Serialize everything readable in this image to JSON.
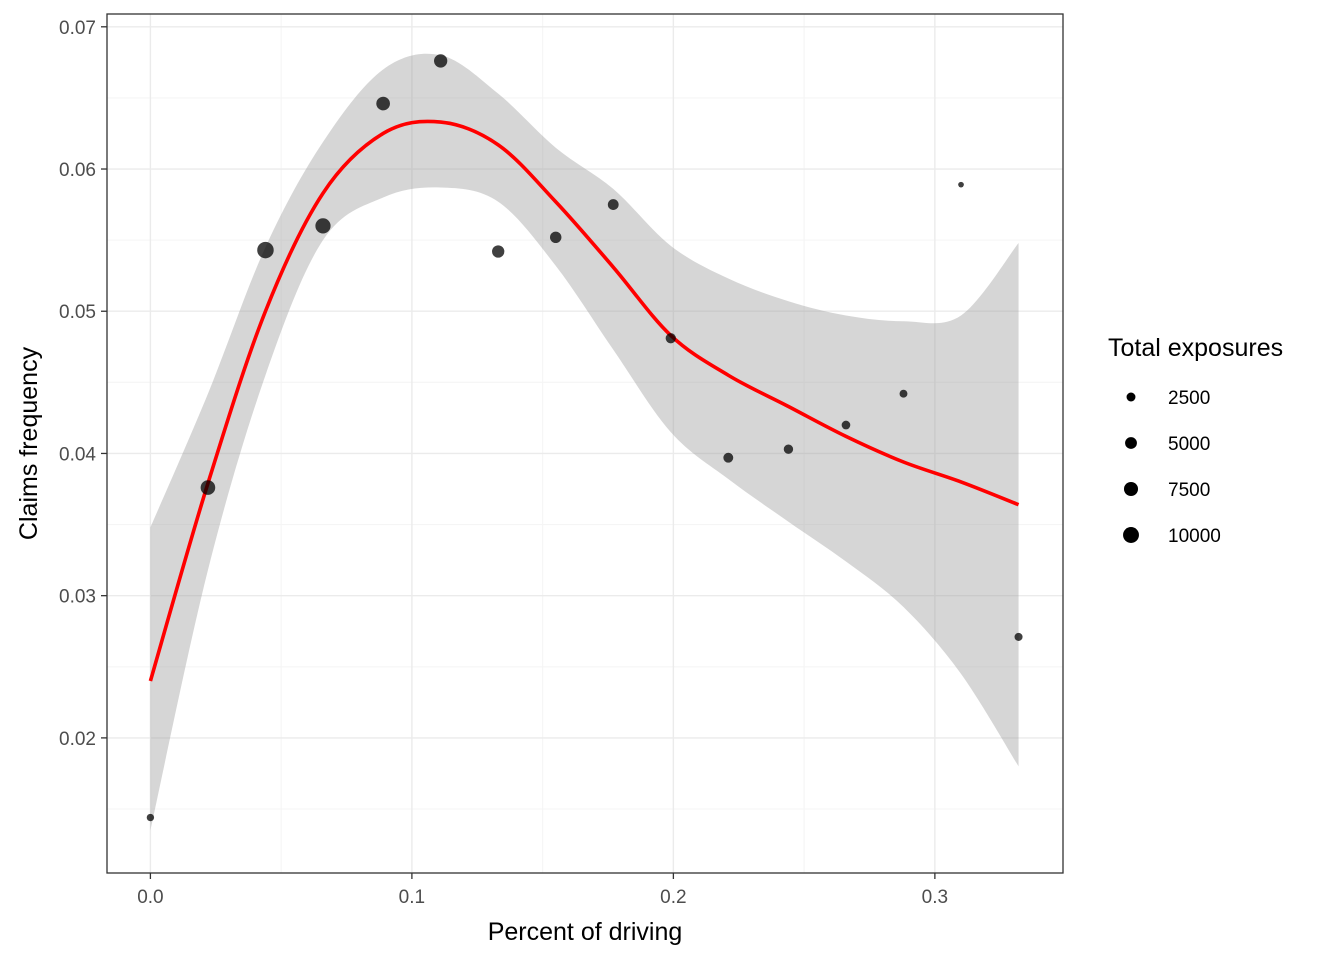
{
  "chart_data": {
    "type": "scatter",
    "xlabel": "Percent of driving",
    "ylabel": "Claims frequency",
    "xlim": [
      -0.0166,
      0.349
    ],
    "ylim": [
      0.0105,
      0.0709
    ],
    "x_ticks": [
      0.0,
      0.1,
      0.2,
      0.3
    ],
    "x_tick_labels": [
      "0.0",
      "0.1",
      "0.2",
      "0.3"
    ],
    "y_ticks": [
      0.02,
      0.03,
      0.04,
      0.05,
      0.06,
      0.07
    ],
    "y_tick_labels": [
      "0.02",
      "0.03",
      "0.04",
      "0.05",
      "0.06",
      "0.07"
    ],
    "grid": true,
    "points": [
      {
        "x": 0.0,
        "y": 0.0144,
        "exposure": 1500
      },
      {
        "x": 0.022,
        "y": 0.0376,
        "exposure": 8200
      },
      {
        "x": 0.044,
        "y": 0.0543,
        "exposure": 10800
      },
      {
        "x": 0.066,
        "y": 0.056,
        "exposure": 9000
      },
      {
        "x": 0.089,
        "y": 0.0646,
        "exposure": 7000
      },
      {
        "x": 0.111,
        "y": 0.0676,
        "exposure": 6600
      },
      {
        "x": 0.133,
        "y": 0.0542,
        "exposure": 5500
      },
      {
        "x": 0.155,
        "y": 0.0552,
        "exposure": 4600
      },
      {
        "x": 0.177,
        "y": 0.0575,
        "exposure": 4000
      },
      {
        "x": 0.199,
        "y": 0.0481,
        "exposure": 3500
      },
      {
        "x": 0.221,
        "y": 0.0397,
        "exposure": 3200
      },
      {
        "x": 0.244,
        "y": 0.0403,
        "exposure": 2800
      },
      {
        "x": 0.266,
        "y": 0.042,
        "exposure": 2300
      },
      {
        "x": 0.288,
        "y": 0.0442,
        "exposure": 1800
      },
      {
        "x": 0.31,
        "y": 0.0589,
        "exposure": 700
      },
      {
        "x": 0.332,
        "y": 0.0271,
        "exposure": 1900
      }
    ],
    "smooth": {
      "color": "#ff0000",
      "x": [
        0.0,
        0.022,
        0.044,
        0.066,
        0.089,
        0.111,
        0.133,
        0.155,
        0.177,
        0.199,
        0.221,
        0.244,
        0.266,
        0.288,
        0.31,
        0.332
      ],
      "y": [
        0.024,
        0.0379,
        0.05,
        0.0583,
        0.0625,
        0.0633,
        0.0617,
        0.0577,
        0.0531,
        0.0483,
        0.0455,
        0.0433,
        0.0412,
        0.0394,
        0.038,
        0.0364
      ],
      "lower": [
        0.0135,
        0.0318,
        0.0455,
        0.055,
        0.058,
        0.0587,
        0.0577,
        0.0532,
        0.0473,
        0.0415,
        0.0382,
        0.0352,
        0.0324,
        0.0292,
        0.0245,
        0.018
      ],
      "upper": [
        0.0348,
        0.0442,
        0.0545,
        0.0619,
        0.067,
        0.068,
        0.0653,
        0.0615,
        0.0586,
        0.0546,
        0.0523,
        0.0507,
        0.0497,
        0.0493,
        0.0497,
        0.0548
      ]
    },
    "legend": {
      "title": "Total exposures",
      "placement": "right",
      "entries": [
        {
          "label": "2500",
          "value": 2500
        },
        {
          "label": "5000",
          "value": 5000
        },
        {
          "label": "7500",
          "value": 7500
        },
        {
          "label": "10000",
          "value": 10000
        }
      ]
    },
    "colors": {
      "point": "#000000",
      "ribbon": "#999999",
      "grid_major": "#ebebeb",
      "grid_minor": "#f5f5f5",
      "panel_border": "#333333"
    }
  }
}
